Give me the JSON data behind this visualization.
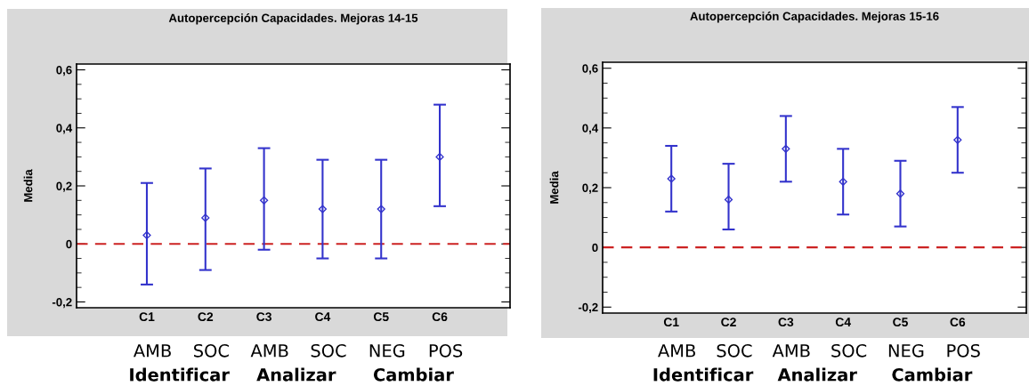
{
  "chart_data": [
    {
      "type": "scatter",
      "title": "Autopercepción Capacidades. Mejoras 14-15",
      "ylabel": "Media",
      "categories": [
        "C1",
        "C2",
        "C3",
        "C4",
        "C5",
        "C6"
      ],
      "series": [
        {
          "color": "#3333cc",
          "values": [
            0.03,
            0.09,
            0.15,
            0.12,
            0.12,
            0.3
          ],
          "errors": [
            [
              -0.14,
              0.21
            ],
            [
              -0.09,
              0.26
            ],
            [
              -0.02,
              0.33
            ],
            [
              -0.05,
              0.29
            ],
            [
              -0.05,
              0.29
            ],
            [
              0.13,
              0.48
            ]
          ]
        }
      ],
      "ylim": [
        -0.22,
        0.62
      ],
      "yticks": [
        {
          "value": -0.2,
          "label": "-0,2"
        },
        0,
        {
          "value": 0.2,
          "label": "0,2"
        },
        {
          "value": 0.4,
          "label": "0,4"
        },
        {
          "value": 0.6,
          "label": "0,6"
        }
      ],
      "ref_lines": [
        {
          "axis": "y",
          "value": 0,
          "color": "#cc2222",
          "line_style": "dashed"
        }
      ],
      "marker": "diamond",
      "grid": false,
      "annotations": [
        "AMB",
        "SOC",
        "AMB",
        "SOC",
        "NEG",
        "POS",
        "Identificar",
        "Analizar",
        "Cambiar"
      ]
    },
    {
      "type": "scatter",
      "title": "Autopercepción Capacidades. Mejoras 15-16",
      "ylabel": "Media",
      "categories": [
        "C1",
        "C2",
        "C3",
        "C4",
        "C5",
        "C6"
      ],
      "series": [
        {
          "color": "#3333cc",
          "values": [
            0.23,
            0.16,
            0.33,
            0.22,
            0.18,
            0.36
          ],
          "errors": [
            [
              0.12,
              0.34
            ],
            [
              0.06,
              0.28
            ],
            [
              0.22,
              0.44
            ],
            [
              0.11,
              0.33
            ],
            [
              0.07,
              0.29
            ],
            [
              0.25,
              0.47
            ]
          ]
        }
      ],
      "ylim": [
        -0.22,
        0.62
      ],
      "yticks": [
        {
          "value": -0.2,
          "label": "-0,2"
        },
        0,
        {
          "value": 0.2,
          "label": "0,2"
        },
        {
          "value": 0.4,
          "label": "0,4"
        },
        {
          "value": 0.6,
          "label": "0,6"
        }
      ],
      "ref_lines": [
        {
          "axis": "y",
          "value": 0,
          "color": "#cc2222",
          "line_style": "dashed"
        }
      ],
      "marker": "diamond",
      "grid": false,
      "annotations": [
        "AMB",
        "SOC",
        "AMB",
        "SOC",
        "NEG",
        "POS",
        "Identificar",
        "Analizar",
        "Cambiar"
      ]
    }
  ]
}
